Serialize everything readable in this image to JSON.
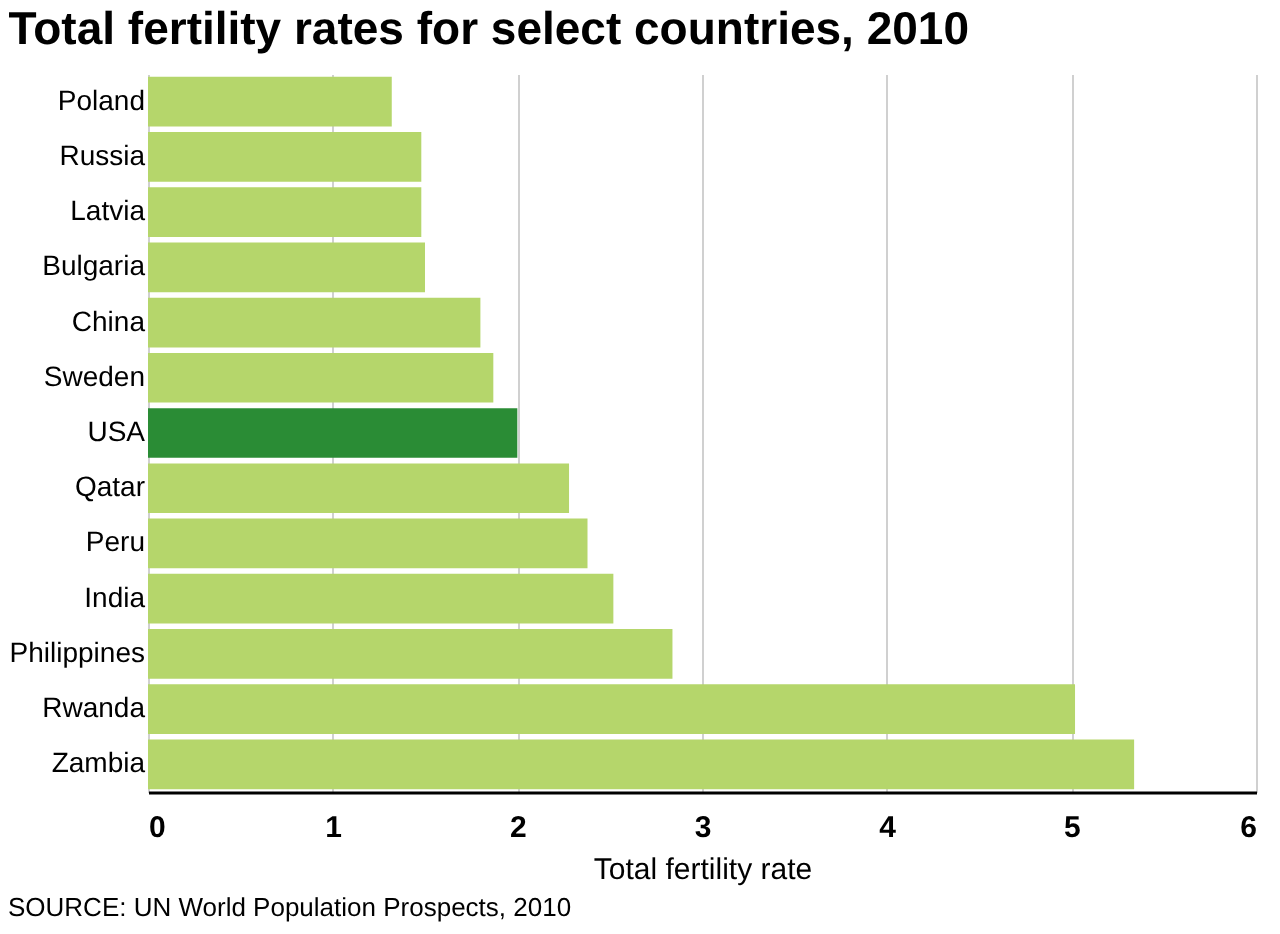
{
  "chart_data": {
    "type": "bar",
    "orientation": "horizontal",
    "title": "Total fertility rates for select countries, 2010",
    "xlabel": "Total fertility rate",
    "categories": [
      "Poland",
      "Russia",
      "Latvia",
      "Bulgaria",
      "China",
      "Sweden",
      "USA",
      "Qatar",
      "Peru",
      "India",
      "Philippines",
      "Rwanda",
      "Zambia"
    ],
    "values": [
      1.32,
      1.48,
      1.48,
      1.5,
      1.8,
      1.87,
      2.0,
      2.28,
      2.38,
      2.52,
      2.84,
      5.02,
      5.34
    ],
    "colors": [
      "#b5d66b",
      "#b5d66b",
      "#b5d66b",
      "#b5d66b",
      "#b5d66b",
      "#b5d66b",
      "#2a8c35",
      "#b5d66b",
      "#b5d66b",
      "#b5d66b",
      "#b5d66b",
      "#b5d66b",
      "#b5d66b"
    ],
    "xlim": [
      0,
      6
    ],
    "xticks": [
      0,
      1,
      2,
      3,
      4,
      5,
      6
    ],
    "grid": "x",
    "annotations": [
      "SOURCE: UN World Population Prospects, 2010"
    ]
  }
}
